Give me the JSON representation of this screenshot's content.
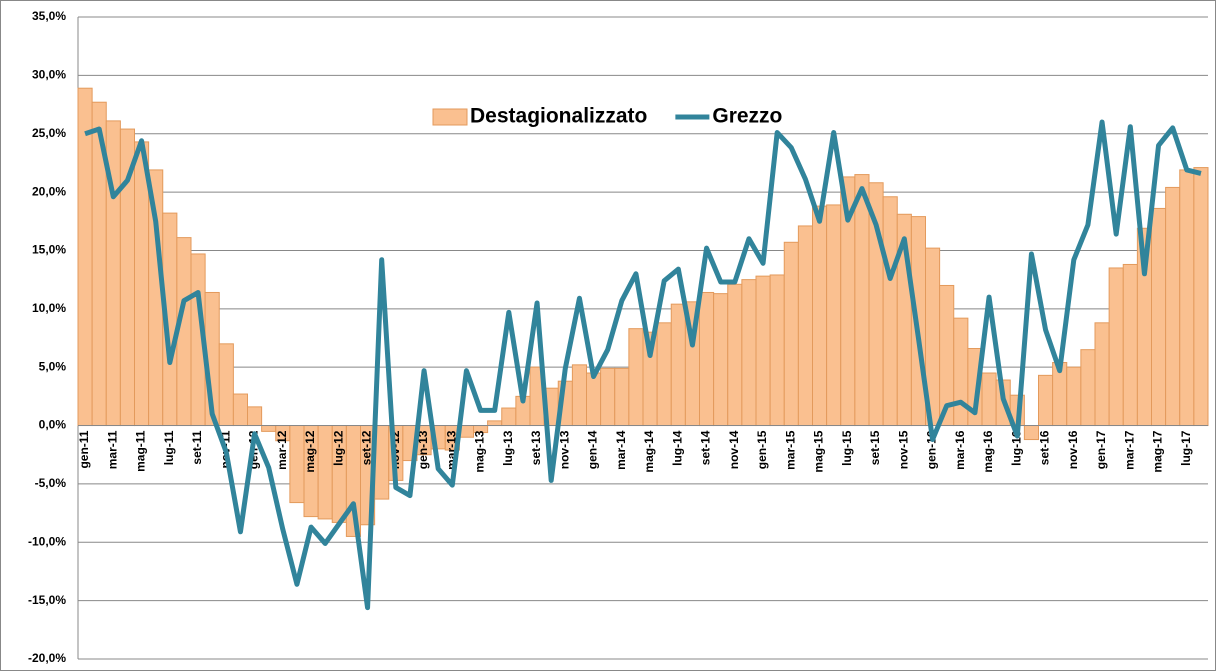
{
  "chart_data": {
    "type": "combo",
    "categories": [
      "gen-11",
      null,
      "mar-11",
      null,
      "mag-11",
      null,
      "lug-11",
      null,
      "set-11",
      null,
      "nov-11",
      null,
      "gen-12",
      null,
      "mar-12",
      null,
      "mag-12",
      null,
      "lug-12",
      null,
      "set-12",
      null,
      "nov-12",
      null,
      "gen-13",
      null,
      "mar-13",
      null,
      "mag-13",
      null,
      "lug-13",
      null,
      "set-13",
      null,
      "nov-13",
      null,
      "gen-14",
      null,
      "mar-14",
      null,
      "mag-14",
      null,
      "lug-14",
      null,
      "set-14",
      null,
      "nov-14",
      null,
      "gen-15",
      null,
      "mar-15",
      null,
      "mag-15",
      null,
      "lug-15",
      null,
      "set-15",
      null,
      "nov-15",
      null,
      "gen-16",
      null,
      "mar-16",
      null,
      "mag-16",
      null,
      "lug-16",
      null,
      "set-16",
      null,
      "nov-16",
      null,
      "gen-17",
      null,
      "mar-17",
      null,
      "mag-17",
      null,
      "lug-17",
      null
    ],
    "series": [
      {
        "name": "Destagionalizzato",
        "type": "bar",
        "color": "#fac090",
        "stroke": "#e39a5c",
        "values": [
          28.9,
          27.7,
          26.1,
          25.4,
          24.3,
          21.9,
          18.2,
          16.1,
          14.7,
          11.4,
          7.0,
          2.7,
          1.6,
          -0.5,
          -1.3,
          -6.6,
          -7.8,
          -8.0,
          -8.3,
          -9.5,
          -8.5,
          -6.3,
          -4.7,
          -3.0,
          -2.5,
          -2.0,
          -2.1,
          -1.0,
          -0.6,
          0.4,
          1.5,
          2.5,
          5.0,
          3.2,
          3.8,
          5.2,
          4.5,
          4.9,
          4.9,
          8.3,
          8.0,
          8.8,
          10.4,
          10.6,
          11.4,
          11.3,
          12.1,
          12.5,
          12.8,
          12.9,
          15.7,
          17.1,
          18.8,
          18.9,
          21.3,
          21.5,
          20.8,
          19.6,
          18.1,
          17.9,
          15.2,
          12.0,
          9.2,
          6.6,
          4.5,
          3.9,
          2.6,
          -1.2,
          4.3,
          5.4,
          5.0,
          6.5,
          8.8,
          13.5,
          13.8,
          16.9,
          18.6,
          20.4,
          21.9,
          22.1
        ]
      },
      {
        "name": "Grezzo",
        "type": "line",
        "color": "#31849b",
        "values": [
          25.0,
          25.4,
          19.6,
          21.0,
          24.4,
          17.5,
          5.4,
          10.7,
          11.4,
          1.0,
          -2.3,
          -9.1,
          -0.7,
          -3.6,
          -8.9,
          -13.6,
          -8.7,
          -10.1,
          -8.4,
          -6.7,
          -15.6,
          14.2,
          -5.3,
          -6.0,
          4.7,
          -3.7,
          -5.1,
          4.7,
          1.3,
          1.3,
          9.7,
          2.1,
          10.5,
          -4.7,
          4.9,
          10.9,
          4.2,
          6.5,
          10.7,
          13.0,
          6.0,
          12.4,
          13.4,
          6.9,
          15.2,
          12.3,
          12.3,
          16.0,
          13.9,
          25.1,
          23.8,
          21.1,
          17.5,
          25.1,
          17.6,
          20.3,
          17.2,
          12.6,
          16.0,
          7.5,
          -1.2,
          1.7,
          2.0,
          1.1,
          11.0,
          2.3,
          -0.9,
          14.7,
          8.2,
          4.7,
          14.2,
          17.2,
          26.0,
          16.4,
          25.6,
          13.0,
          24.0,
          25.5,
          21.9,
          21.6
        ]
      }
    ],
    "ylim": [
      -20,
      35
    ],
    "yticks": [
      {
        "value": -20,
        "label": "-20,0%"
      },
      {
        "value": -15,
        "label": "-15,0%"
      },
      {
        "value": -10,
        "label": "-10,0%"
      },
      {
        "value": -5,
        "label": "-5,0%"
      },
      {
        "value": 0,
        "label": "0,0%"
      },
      {
        "value": 5,
        "label": "5,0%"
      },
      {
        "value": 10,
        "label": "10,0%"
      },
      {
        "value": 15,
        "label": "15,0%"
      },
      {
        "value": 20,
        "label": "20,0%"
      },
      {
        "value": 25,
        "label": "25,0%"
      },
      {
        "value": 30,
        "label": "30,0%"
      },
      {
        "value": 35,
        "label": "35,0%"
      }
    ],
    "grid": true,
    "legend": "top"
  }
}
